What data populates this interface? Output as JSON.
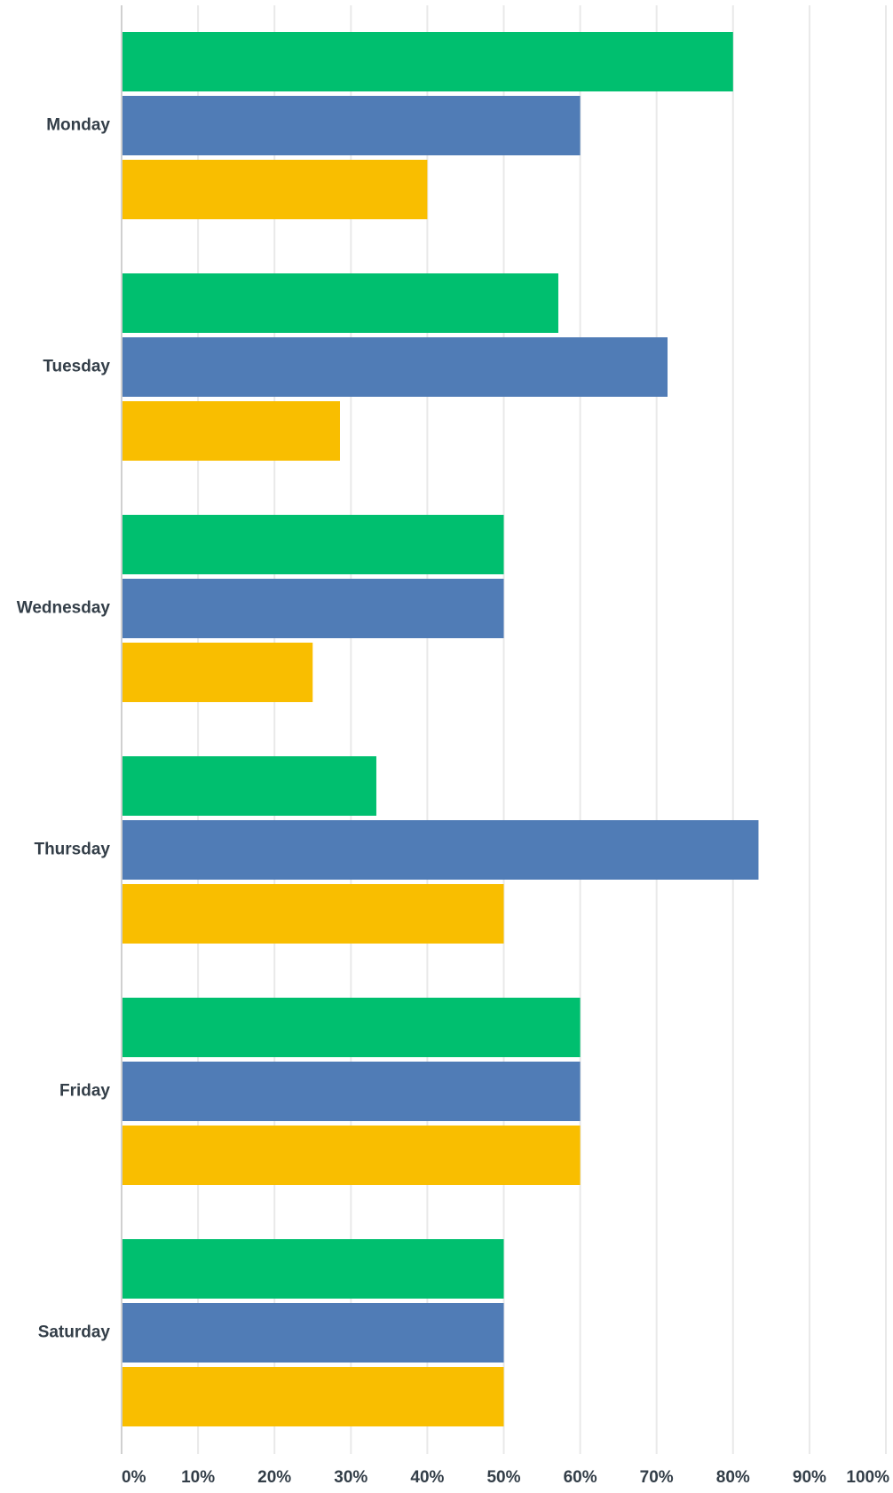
{
  "chart_data": {
    "type": "bar",
    "orientation": "horizontal",
    "categories": [
      "Monday",
      "Tuesday",
      "Wednesday",
      "Thursday",
      "Friday",
      "Saturday"
    ],
    "series": [
      {
        "color": "#00bf6f",
        "values": [
          80,
          57.14,
          50,
          33.33,
          60,
          50
        ]
      },
      {
        "color": "#507cb6",
        "values": [
          60,
          71.43,
          50,
          83.33,
          60,
          50
        ]
      },
      {
        "color": "#f9be00",
        "values": [
          40,
          28.57,
          25,
          50,
          60,
          50
        ]
      }
    ],
    "xlim": [
      0,
      100
    ],
    "x_ticks": [
      "0%",
      "10%",
      "20%",
      "30%",
      "40%",
      "50%",
      "60%",
      "70%",
      "80%",
      "90%",
      "100%"
    ],
    "grid": true,
    "legend": "none"
  }
}
